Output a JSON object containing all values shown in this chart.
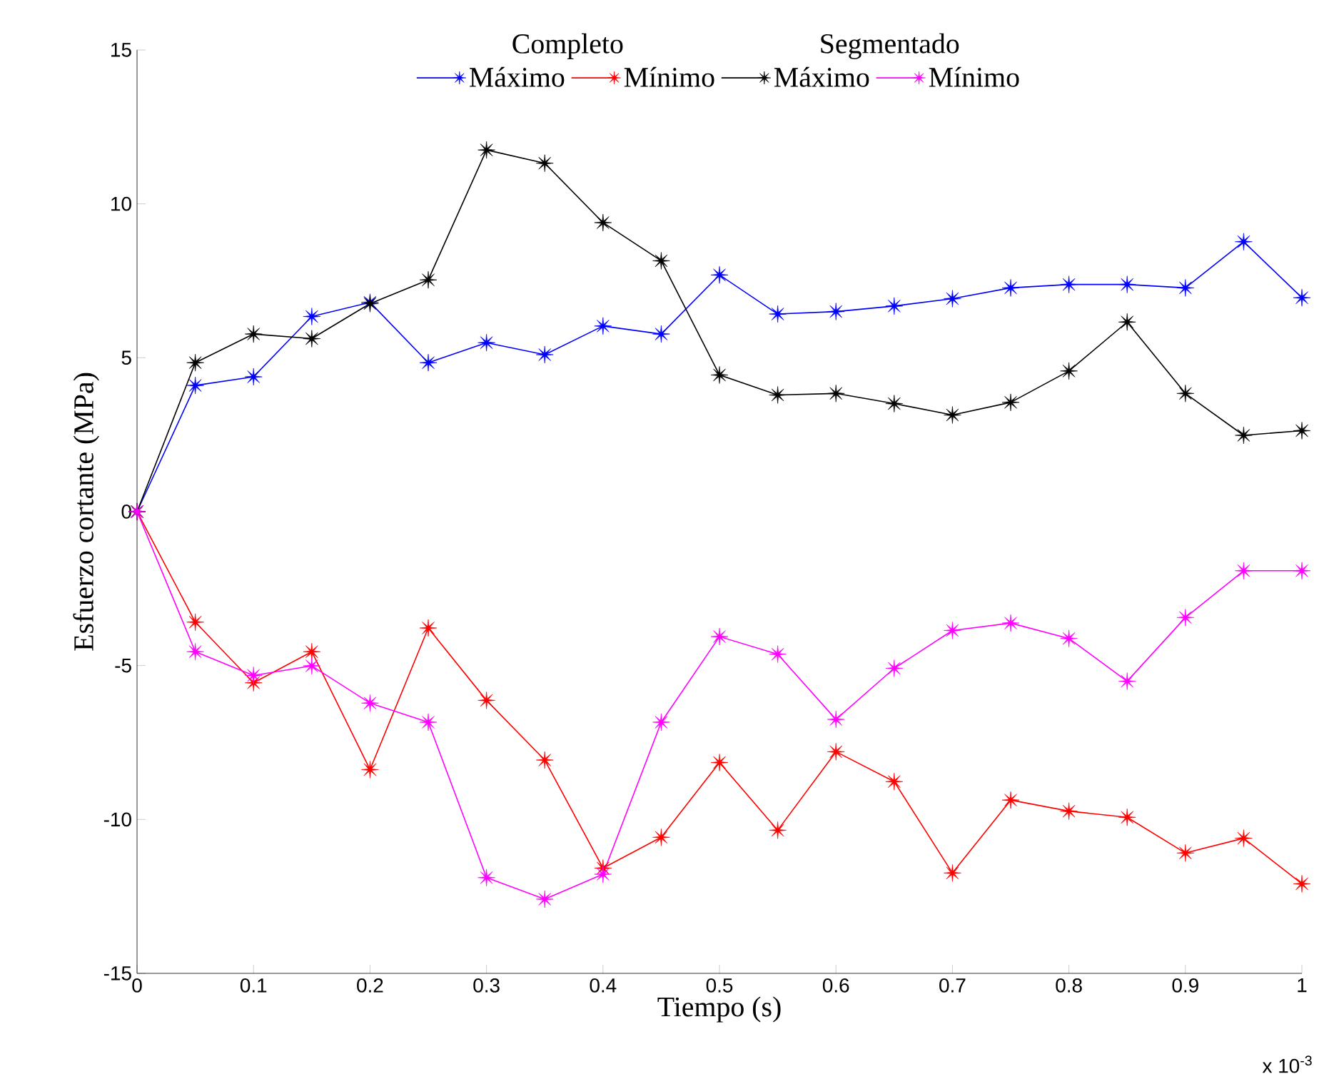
{
  "chart_data": {
    "type": "line",
    "xlabel": "Tiempo (s)",
    "ylabel": "Esfuerzo cortante (MPa)",
    "x": [
      0,
      0.05,
      0.1,
      0.15,
      0.2,
      0.25,
      0.3,
      0.35,
      0.4,
      0.45,
      0.5,
      0.55,
      0.6,
      0.65,
      0.7,
      0.75,
      0.8,
      0.85,
      0.9,
      0.95,
      1
    ],
    "series": [
      {
        "name": "Máximo",
        "color": "#0000ff",
        "values": [
          0,
          4.1,
          4.38,
          6.34,
          6.8,
          4.84,
          5.49,
          5.1,
          6.03,
          5.77,
          7.69,
          6.42,
          6.5,
          6.68,
          6.92,
          7.27,
          7.38,
          7.38,
          7.27,
          8.77,
          6.95
        ]
      },
      {
        "name": "Mínimo",
        "color": "#ff0000",
        "values": [
          0,
          -3.59,
          -5.56,
          -4.55,
          -8.38,
          -3.78,
          -6.13,
          -8.07,
          -11.58,
          -10.58,
          -8.15,
          -10.35,
          -7.8,
          -8.77,
          -11.74,
          -9.37,
          -9.73,
          -9.93,
          -11.09,
          -10.61,
          -12.09
        ]
      },
      {
        "name": "Máximo",
        "color": "#000000",
        "values": [
          0,
          4.84,
          5.77,
          5.62,
          6.76,
          7.53,
          11.75,
          11.32,
          9.39,
          8.15,
          4.44,
          3.79,
          3.84,
          3.51,
          3.14,
          3.55,
          4.57,
          6.16,
          3.84,
          2.48,
          2.63
        ]
      },
      {
        "name": "Mínimo",
        "color": "#ff00ff",
        "values": [
          0,
          -4.55,
          -5.32,
          -5.01,
          -6.22,
          -6.84,
          -11.89,
          -12.59,
          -11.78,
          -6.84,
          -4.06,
          -4.63,
          -6.75,
          -5.09,
          -3.86,
          -3.62,
          -4.12,
          -5.51,
          -3.44,
          -1.92,
          -1.92
        ]
      }
    ],
    "xlim": [
      0,
      1
    ],
    "ylim": [
      -15,
      15
    ],
    "xticks": [
      0,
      0.1,
      0.2,
      0.3,
      0.4,
      0.5,
      0.6,
      0.7,
      0.8,
      0.9,
      1
    ],
    "yticks": [
      -15,
      -10,
      -5,
      0,
      5,
      10,
      15
    ],
    "annotations": [
      "Completo",
      "Segmentado",
      "x 10$^{-3}$"
    ],
    "grid": false,
    "legend": "top",
    "marker": "star",
    "line_style": "solid"
  }
}
